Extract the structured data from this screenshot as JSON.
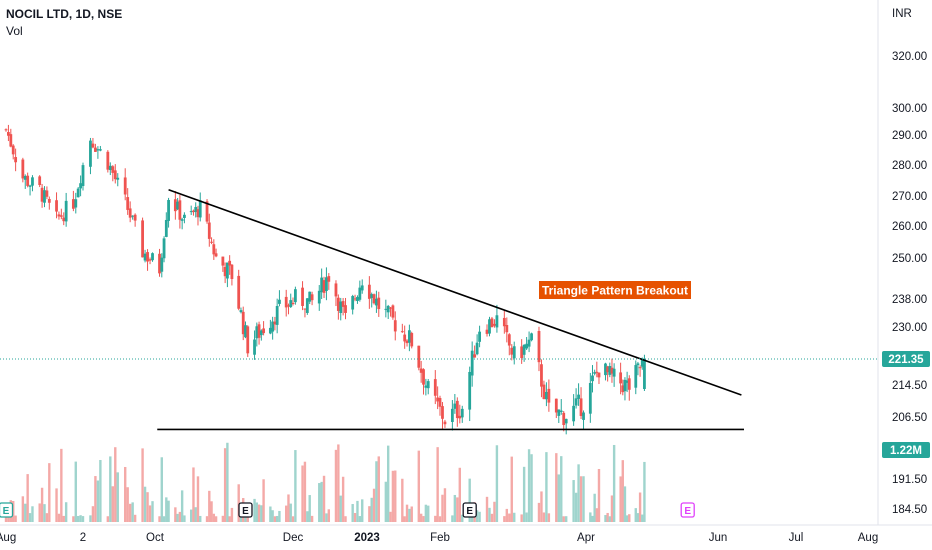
{
  "header": {
    "title": "NOCIL LTD, 1D, NSE",
    "indicator": "Vol"
  },
  "currency": "INR",
  "annotation": {
    "text": "Triangle Pattern Breakout",
    "bg": "#e65100",
    "color": "#ffffff"
  },
  "colors": {
    "up": "#26a69a",
    "down": "#ef5350",
    "up_vol": "#9fd4cd",
    "down_vol": "#f4a9a7",
    "last_price": "#26a69a",
    "earnings_pink": "#e040fb"
  },
  "chart_data": {
    "type": "candlestick",
    "symbol": "NOCIL LTD",
    "interval": "1D",
    "exchange": "NSE",
    "last_price": "221.35",
    "last_volume": "1.22M",
    "y_ticks": [
      "320.00",
      "300.00",
      "290.00",
      "280.00",
      "270.00",
      "260.00",
      "250.00",
      "238.00",
      "230.00",
      "214.50",
      "206.50",
      "191.50",
      "184.50"
    ],
    "x_ticks": [
      {
        "label": "Aug",
        "x": "2022-08-01"
      },
      {
        "label": "2",
        "x": "2022-09-02"
      },
      {
        "label": "Oct",
        "x": "2022-10-01"
      },
      {
        "label": "Dec",
        "x": "2022-12-01"
      },
      {
        "label": "2023",
        "x": "2023-01-01",
        "bold": true
      },
      {
        "label": "Feb",
        "x": "2023-02-01"
      },
      {
        "label": "Apr",
        "x": "2023-04-01"
      },
      {
        "label": "Jun",
        "x": "2023-06-01"
      },
      {
        "label": "Jul",
        "x": "2023-07-01"
      },
      {
        "label": "Aug",
        "x": "2023-08-01"
      }
    ],
    "earnings_markers": [
      {
        "label": "E",
        "x": "2022-08-01",
        "color": "#26a69a"
      },
      {
        "label": "E",
        "x": "2022-11-10",
        "color": "#131722"
      },
      {
        "label": "E",
        "x": "2023-02-13",
        "color": "#131722"
      },
      {
        "label": "E",
        "x": "2023-05-18",
        "color": "#e040fb"
      }
    ],
    "trendlines": [
      {
        "name": "resistance",
        "from": {
          "x": "2022-10-07",
          "y": 272
        },
        "to": {
          "x": "2023-06-10",
          "y": 212
        }
      },
      {
        "name": "support",
        "from": {
          "x": "2022-10-02",
          "y": 203.5
        },
        "to": {
          "x": "2023-06-11",
          "y": 203.5
        }
      }
    ],
    "price_path": [
      {
        "x": "2022-08-01",
        "y": 292
      },
      {
        "x": "2022-08-08",
        "y": 276
      },
      {
        "x": "2022-08-15",
        "y": 272
      },
      {
        "x": "2022-08-22",
        "y": 262
      },
      {
        "x": "2022-08-29",
        "y": 268
      },
      {
        "x": "2022-09-05",
        "y": 289
      },
      {
        "x": "2022-09-12",
        "y": 281
      },
      {
        "x": "2022-09-19",
        "y": 268
      },
      {
        "x": "2022-09-26",
        "y": 252
      },
      {
        "x": "2022-10-03",
        "y": 247
      },
      {
        "x": "2022-10-07",
        "y": 270
      },
      {
        "x": "2022-10-14",
        "y": 262
      },
      {
        "x": "2022-10-21",
        "y": 266
      },
      {
        "x": "2022-10-28",
        "y": 250
      },
      {
        "x": "2022-11-04",
        "y": 245
      },
      {
        "x": "2022-11-11",
        "y": 225
      },
      {
        "x": "2022-11-18",
        "y": 230
      },
      {
        "x": "2022-11-25",
        "y": 235
      },
      {
        "x": "2022-12-02",
        "y": 238
      },
      {
        "x": "2022-12-09",
        "y": 237
      },
      {
        "x": "2022-12-16",
        "y": 245
      },
      {
        "x": "2022-12-23",
        "y": 232
      },
      {
        "x": "2022-12-30",
        "y": 244
      },
      {
        "x": "2023-01-06",
        "y": 236
      },
      {
        "x": "2023-01-13",
        "y": 231
      },
      {
        "x": "2023-01-20",
        "y": 226
      },
      {
        "x": "2023-01-27",
        "y": 213
      },
      {
        "x": "2023-02-03",
        "y": 206
      },
      {
        "x": "2023-02-10",
        "y": 209
      },
      {
        "x": "2023-02-17",
        "y": 230
      },
      {
        "x": "2023-02-24",
        "y": 232
      },
      {
        "x": "2023-03-03",
        "y": 222
      },
      {
        "x": "2023-03-10",
        "y": 226
      },
      {
        "x": "2023-03-17",
        "y": 208
      },
      {
        "x": "2023-03-24",
        "y": 207
      },
      {
        "x": "2023-03-31",
        "y": 210
      },
      {
        "x": "2023-04-07",
        "y": 219
      },
      {
        "x": "2023-04-14",
        "y": 216
      },
      {
        "x": "2023-04-21",
        "y": 214
      },
      {
        "x": "2023-04-28",
        "y": 221.35
      }
    ]
  }
}
